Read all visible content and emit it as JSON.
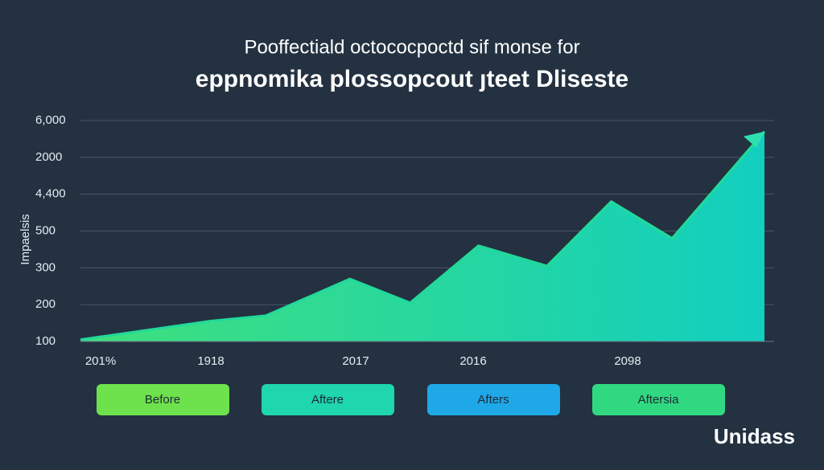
{
  "chart_data": {
    "type": "area",
    "title": "Pooffectiald octococpoctd sif monse for",
    "subtitle": "eppnomika plossopcout ȷteet Dliseste",
    "ylabel": "Impaelsis",
    "y_labels": [
      "100",
      "200",
      "300",
      "500",
      "4,400",
      "2000",
      "6,000"
    ],
    "x_labels": [
      "201%",
      "1918",
      "2017",
      "2016",
      "2098"
    ],
    "x": [
      0,
      18.8,
      27.1,
      39.4,
      48.2,
      58.2,
      68.2,
      77.6,
      86.5,
      100
    ],
    "values": [
      0.05,
      0.55,
      0.7,
      1.7,
      1.05,
      2.6,
      2.05,
      3.8,
      2.8,
      5.7
    ],
    "xlim": [
      0,
      100
    ],
    "ylim": [
      0,
      6
    ],
    "color": "#22d99a",
    "grid": true,
    "buttons": [
      {
        "label": "Before",
        "color": "#6de24c"
      },
      {
        "label": "Aftere",
        "color": "#1fd6ad"
      },
      {
        "label": "Afters",
        "color": "#1ea8e8"
      },
      {
        "label": "Aftersia",
        "color": "#30d981"
      }
    ],
    "logo": "Unidass"
  }
}
